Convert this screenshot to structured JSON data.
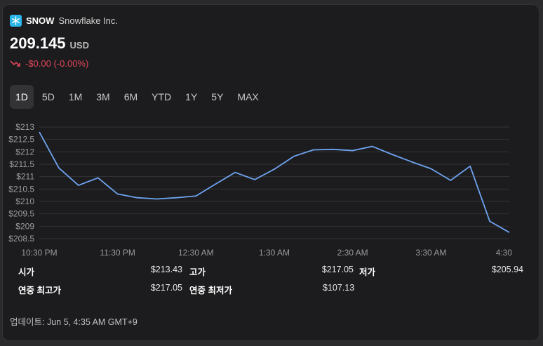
{
  "header": {
    "symbol": "SNOW",
    "company": "Snowflake Inc.",
    "logo_icon": "snowflake-icon",
    "logo_color": "#29b5e8"
  },
  "quote": {
    "price": "209.145",
    "currency": "USD",
    "change": "-$0.00 (-0.00%)",
    "change_color": "#e0455a"
  },
  "tabs": [
    {
      "label": "1D",
      "active": true
    },
    {
      "label": "5D"
    },
    {
      "label": "1M"
    },
    {
      "label": "3M"
    },
    {
      "label": "6M"
    },
    {
      "label": "YTD"
    },
    {
      "label": "1Y"
    },
    {
      "label": "5Y"
    },
    {
      "label": "MAX"
    }
  ],
  "chart_data": {
    "type": "line",
    "y_tick_labels": [
      "$213",
      "$212.5",
      "$212",
      "$211.5",
      "$211",
      "$210.5",
      "$210",
      "$209.5",
      "$209",
      "$208.5"
    ],
    "y_ticks": [
      213,
      212.5,
      212,
      211.5,
      211,
      210.5,
      210,
      209.5,
      209,
      208.5
    ],
    "ylim": [
      208.5,
      213
    ],
    "x_tick_labels": [
      "10:30 PM",
      "11:30 PM",
      "12:30 AM",
      "1:30 AM",
      "2:30 AM",
      "3:30 AM",
      "4:30"
    ],
    "x_ticks": [
      0,
      60,
      120,
      180,
      240,
      300,
      360
    ],
    "xlim": [
      0,
      360
    ],
    "line_color": "#6ea3f0",
    "grid": true,
    "points": [
      [
        0,
        212.8
      ],
      [
        15,
        211.35
      ],
      [
        30,
        210.65
      ],
      [
        45,
        210.95
      ],
      [
        60,
        210.3
      ],
      [
        75,
        210.15
      ],
      [
        90,
        210.1
      ],
      [
        105,
        210.15
      ],
      [
        120,
        210.22
      ],
      [
        135,
        210.7
      ],
      [
        150,
        211.17
      ],
      [
        165,
        210.88
      ],
      [
        180,
        211.3
      ],
      [
        195,
        211.82
      ],
      [
        210,
        212.08
      ],
      [
        225,
        212.1
      ],
      [
        240,
        212.05
      ],
      [
        255,
        212.22
      ],
      [
        270,
        211.9
      ],
      [
        285,
        211.6
      ],
      [
        300,
        211.32
      ],
      [
        315,
        210.85
      ],
      [
        330,
        211.42
      ],
      [
        345,
        209.2
      ],
      [
        360,
        208.75
      ]
    ]
  },
  "stats": {
    "open_label": "시가",
    "open_value": "$213.43",
    "high_label": "고가",
    "high_value": "$217.05",
    "low_label": "저가",
    "low_value": "$205.94",
    "year_high_label": "연중 최고가",
    "year_high_value": "$217.05",
    "year_low_label": "연중 최저가",
    "year_low_value": "$107.13"
  },
  "updated": "업데이트: Jun 5, 4:35 AM GMT+9"
}
